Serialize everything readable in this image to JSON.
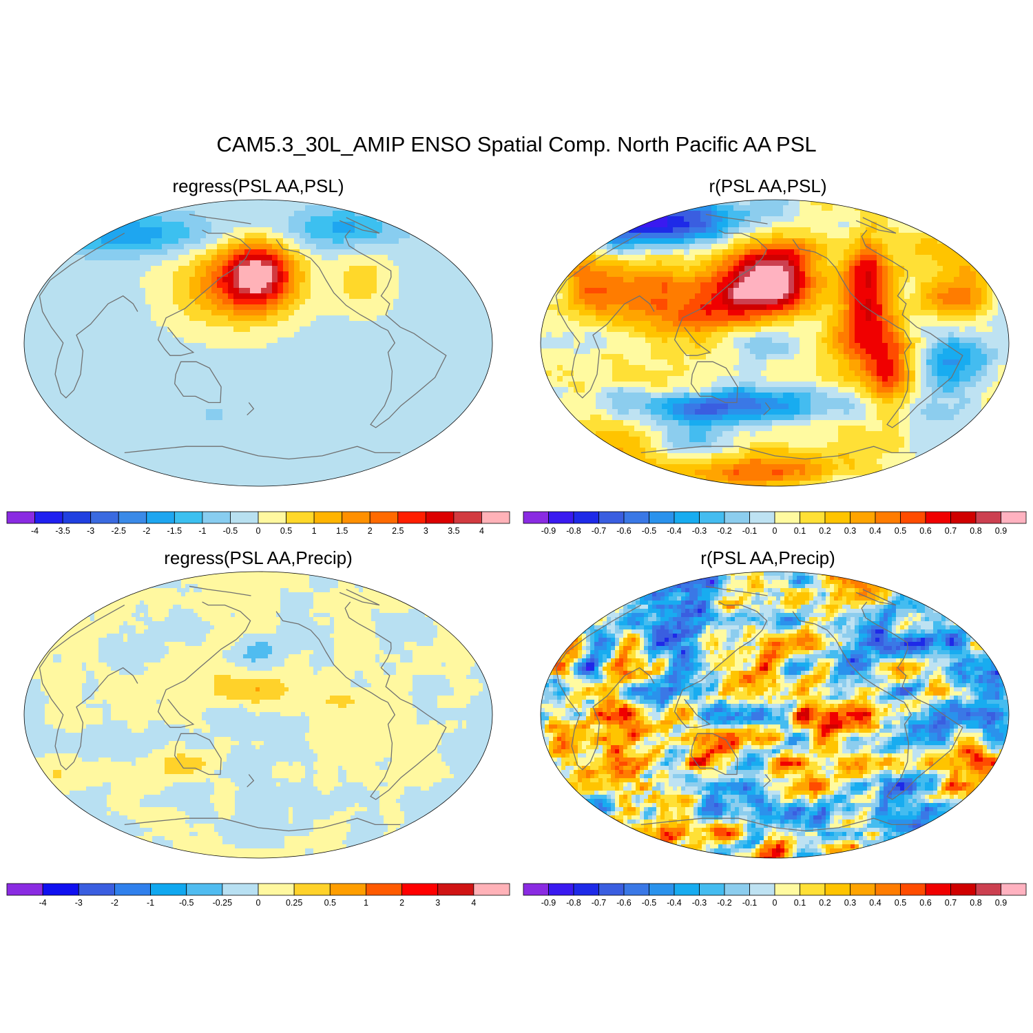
{
  "title": "CAM5.3_30L_AMIP ENSO Spatial Comp. North Pacific AA PSL",
  "panels": [
    {
      "id": "p1",
      "subtitle": "regress(PSL AA,PSL)",
      "field": "smooth_psl_reg",
      "colorbar": {
        "colors": [
          "#8a2be2",
          "#2020f0",
          "#2040e0",
          "#3a6ae0",
          "#3a8ae8",
          "#1ea6f0",
          "#3cc0f0",
          "#88cdf0",
          "#b8e0f0",
          "#fff8a0",
          "#ffd82a",
          "#ffb400",
          "#ff9000",
          "#ff6a00",
          "#ff1e00",
          "#dc0000",
          "#d23a40",
          "#ffb2b8"
        ],
        "labels": [
          "-4",
          "-3.5",
          "-3",
          "-2.5",
          "-2",
          "-1.5",
          "-1",
          "-0.5",
          "0",
          "0.5",
          "1",
          "1.5",
          "2",
          "2.5",
          "3",
          "3.5",
          "4"
        ]
      }
    },
    {
      "id": "p2",
      "subtitle": "r(PSL AA,PSL)",
      "field": "smooth_psl_corr",
      "colorbar": {
        "colors": [
          "#8a2be2",
          "#3a1af0",
          "#1e2ae8",
          "#3a5ee0",
          "#3a78e6",
          "#2a92ec",
          "#18acf0",
          "#44bcf0",
          "#8ccdee",
          "#bee2f2",
          "#fffaa0",
          "#ffe036",
          "#ffc400",
          "#ffa400",
          "#ff7c00",
          "#ff4c00",
          "#f00000",
          "#d00000",
          "#cc4050",
          "#ffb2c0"
        ],
        "labels": [
          "-0.9",
          "-0.8",
          "-0.7",
          "-0.6",
          "-0.5",
          "-0.4",
          "-0.3",
          "-0.2",
          "-0.1",
          "0",
          "0.1",
          "0.2",
          "0.3",
          "0.4",
          "0.5",
          "0.6",
          "0.7",
          "0.8",
          "0.9"
        ]
      }
    },
    {
      "id": "p3",
      "subtitle": "regress(PSL AA,Precip)",
      "field": "noisy_precip_reg",
      "colorbar": {
        "colors": [
          "#8a2be2",
          "#1010f0",
          "#3a5ee0",
          "#3080ec",
          "#10a8f0",
          "#50bcf0",
          "#b8e0f2",
          "#fff8a0",
          "#ffd22a",
          "#ff9e00",
          "#ff5a00",
          "#ff0000",
          "#d01414",
          "#ffb2b8"
        ],
        "labels": [
          "-4",
          "-3",
          "-2",
          "-1",
          "-0.5",
          "-0.25",
          "0",
          "0.25",
          "0.5",
          "1",
          "2",
          "3",
          "4"
        ]
      }
    },
    {
      "id": "p4",
      "subtitle": "r(PSL AA,Precip)",
      "field": "noisy_precip_corr",
      "colorbar": {
        "colors": [
          "#8a2be2",
          "#3a1af0",
          "#1e2ae8",
          "#3a5ee0",
          "#3a78e6",
          "#2a92ec",
          "#18acf0",
          "#44bcf0",
          "#8ccdee",
          "#bee2f2",
          "#fffaa0",
          "#ffe036",
          "#ffc400",
          "#ffa400",
          "#ff7c00",
          "#ff4c00",
          "#f00000",
          "#d00000",
          "#cc4050",
          "#ffb2c0"
        ],
        "labels": [
          "-0.9",
          "-0.8",
          "-0.7",
          "-0.6",
          "-0.5",
          "-0.4",
          "-0.3",
          "-0.2",
          "-0.1",
          "0",
          "0.1",
          "0.2",
          "0.3",
          "0.4",
          "0.5",
          "0.6",
          "0.7",
          "0.8",
          "0.9"
        ]
      }
    }
  ],
  "map": {
    "projection": "Winkel tripel-like",
    "center_longitude": "180",
    "coastline_color": "#707070"
  }
}
